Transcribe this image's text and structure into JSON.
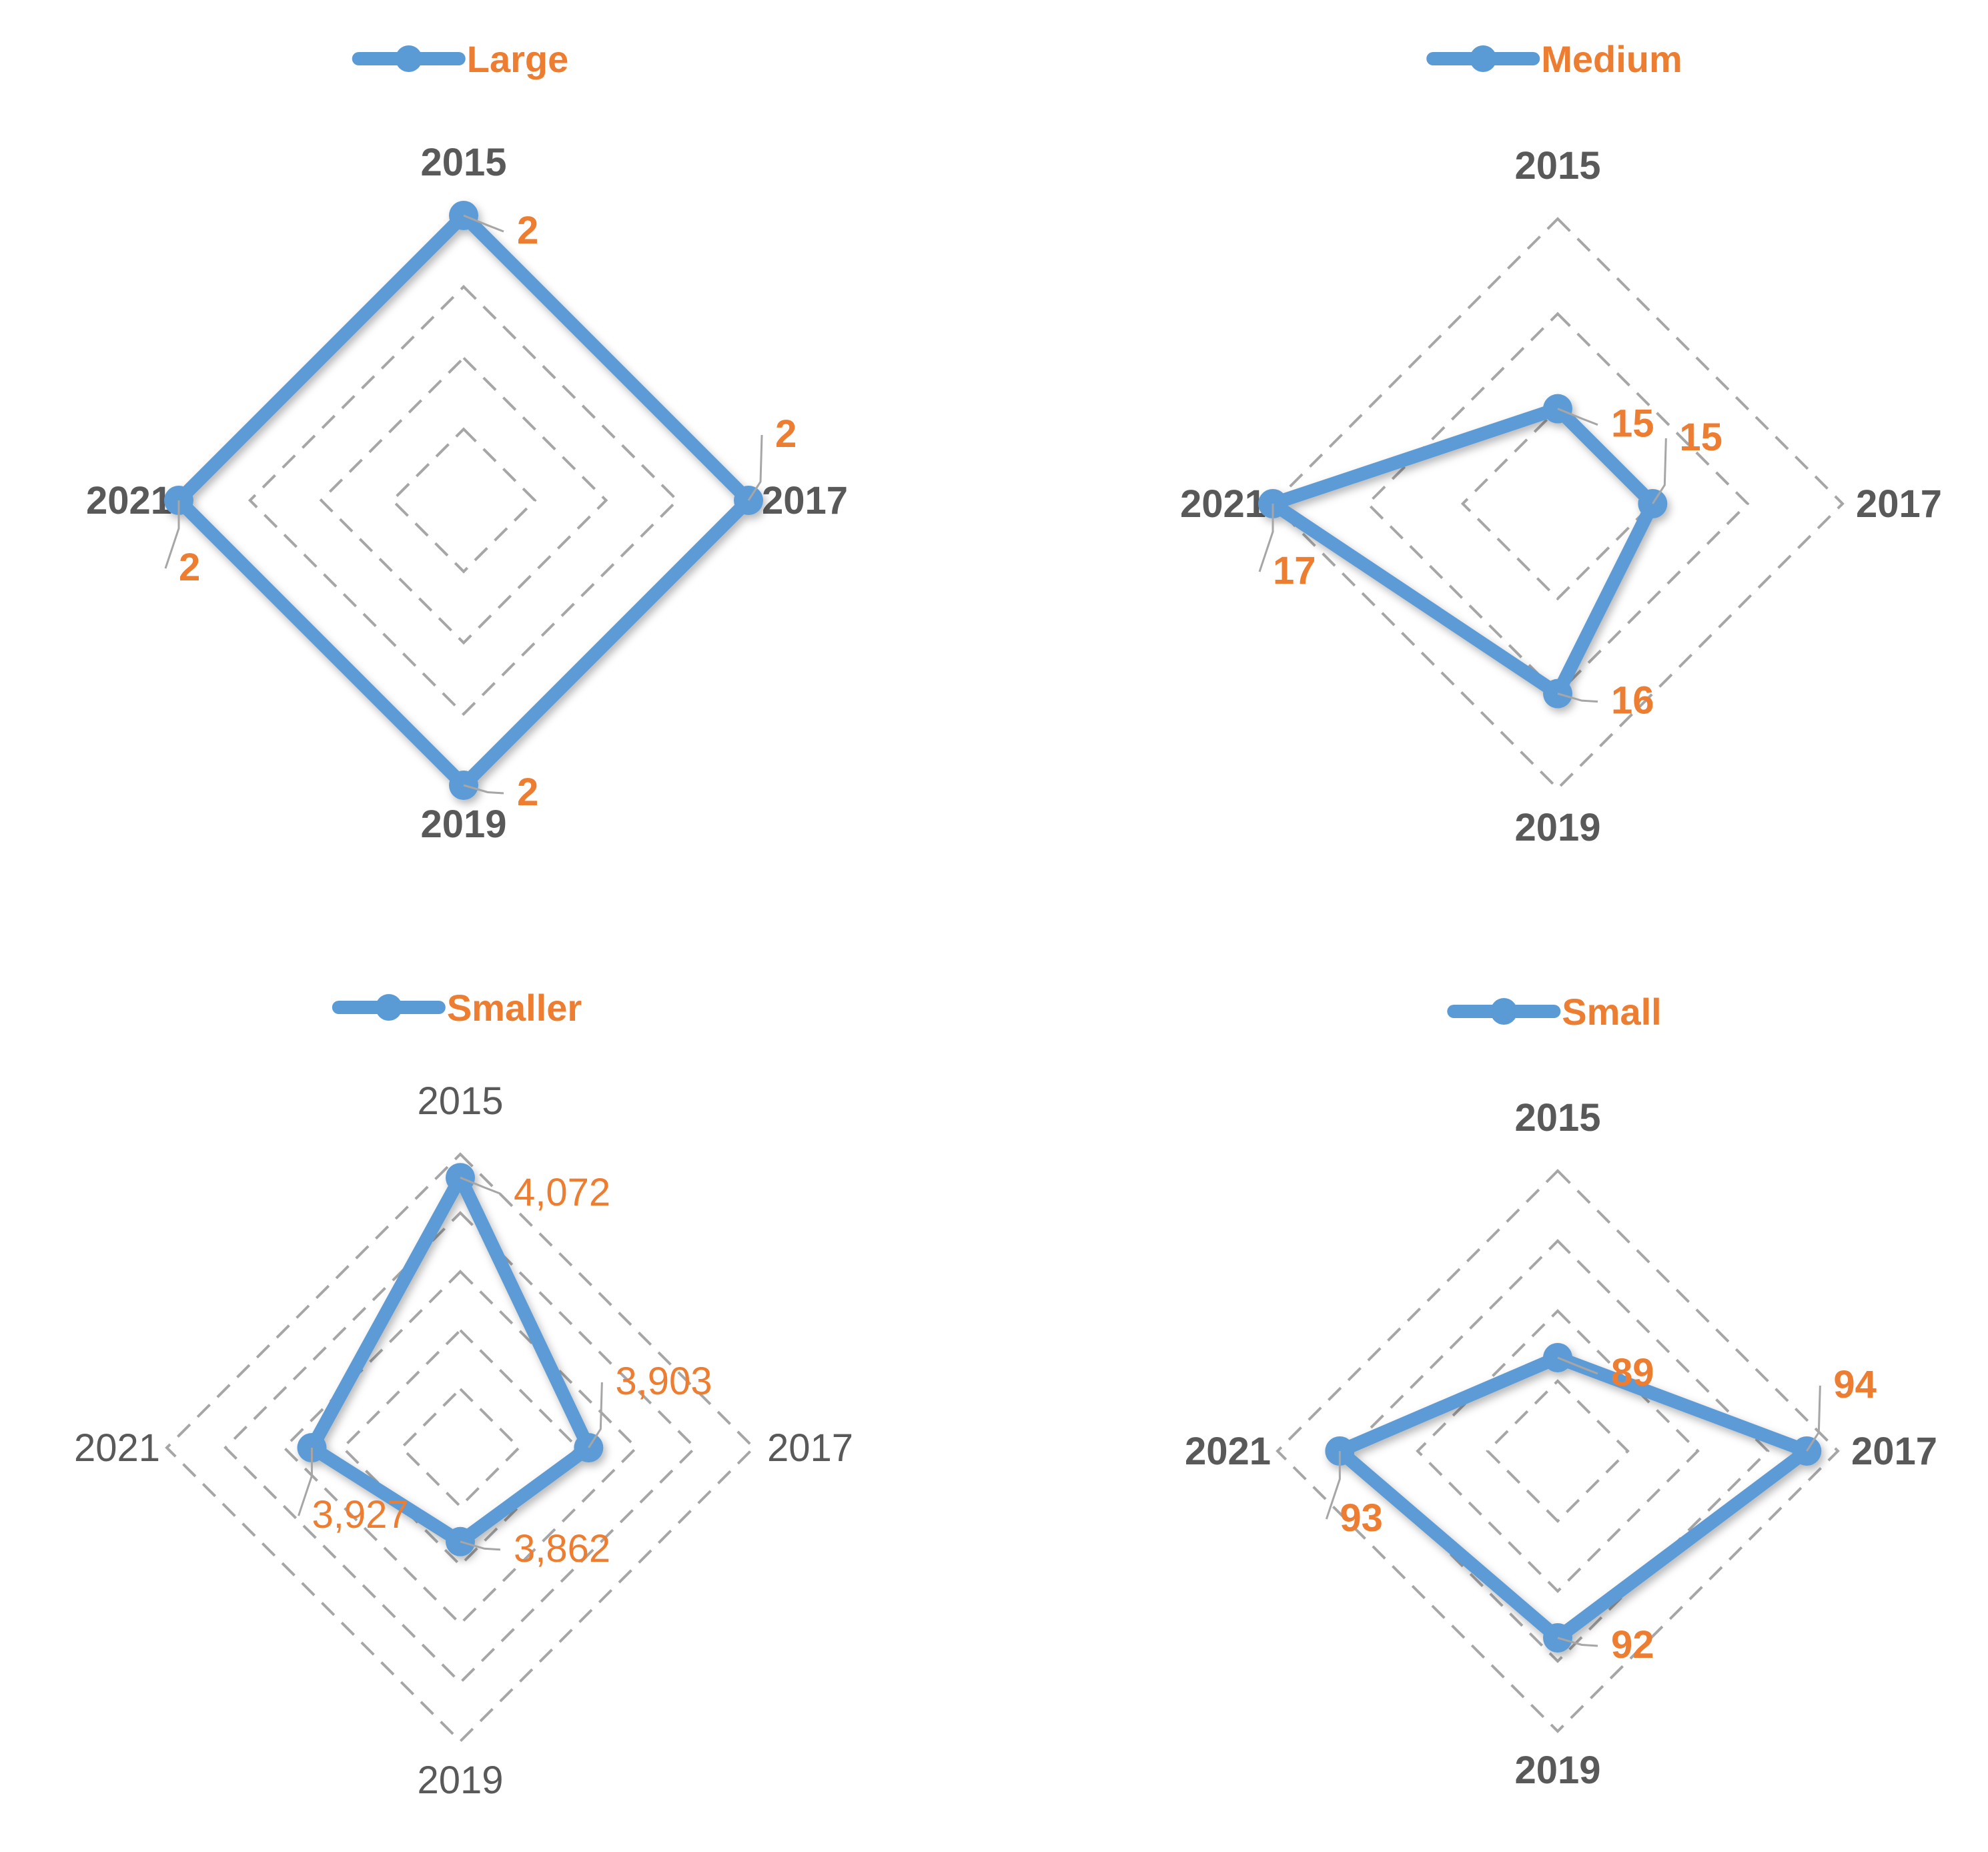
{
  "colors": {
    "series": "#5b9bd5",
    "label": "#ed7d31",
    "axis_text": "#595959",
    "grid": "#a6a6a6"
  },
  "chart_data": [
    {
      "type": "radar",
      "legend": "Large",
      "legend_position": "top",
      "categories": [
        "2015",
        "2017",
        "2019",
        "2021"
      ],
      "values": [
        2,
        2,
        2,
        2
      ],
      "value_labels": [
        "2",
        "2",
        "2",
        "2"
      ],
      "rmax": 2,
      "grid_rings": 4,
      "bold_text": true
    },
    {
      "type": "radar",
      "legend": "Medium",
      "legend_position": "top",
      "categories": [
        "2015",
        "2017",
        "2019",
        "2021"
      ],
      "values": [
        15,
        15,
        16,
        17
      ],
      "value_labels": [
        "15",
        "15",
        "16",
        "17"
      ],
      "rmin": 14,
      "rmax": 17,
      "grid_rings": 3,
      "bold_text": true
    },
    {
      "type": "radar",
      "legend": "Smaller",
      "legend_position": "top",
      "categories": [
        "2015",
        "2017",
        "2019",
        "2021"
      ],
      "values": [
        4072,
        3903,
        3862,
        3927
      ],
      "value_labels": [
        "4,072",
        "3,903",
        "3,862",
        "3,927"
      ],
      "rmin": 3750,
      "rmax": 4100,
      "grid_rings": 5,
      "bold_text": false
    },
    {
      "type": "radar",
      "legend": "Small",
      "legend_position": "top",
      "categories": [
        "2015",
        "2017",
        "2019",
        "2021"
      ],
      "values": [
        89,
        94,
        92,
        93
      ],
      "value_labels": [
        "89",
        "94",
        "92",
        "93"
      ],
      "rmin": 86,
      "rmax": 95,
      "grid_rings": 4,
      "bold_text": true
    }
  ]
}
